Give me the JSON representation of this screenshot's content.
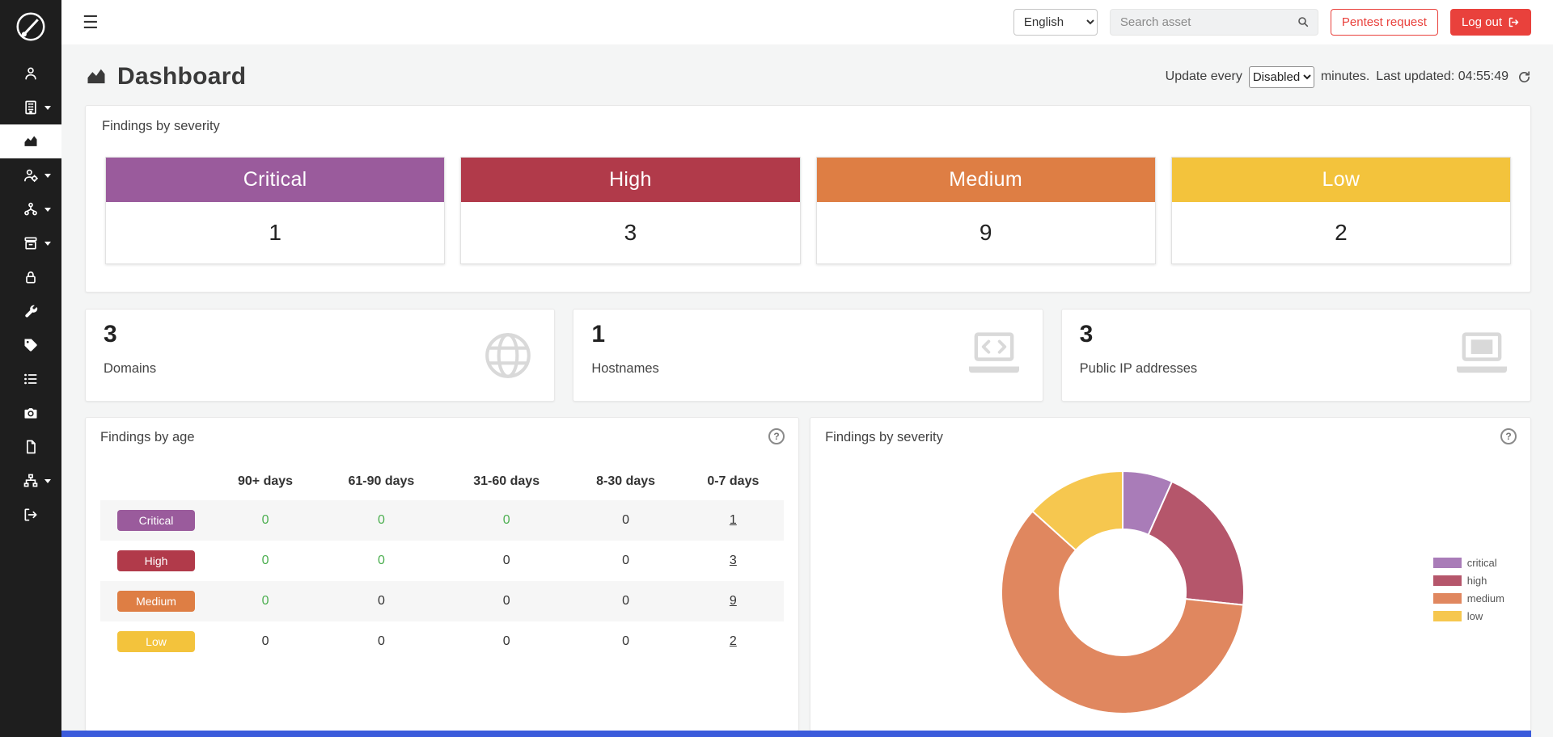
{
  "glyphs": {
    "hamburger": "☰",
    "help": "?"
  },
  "colors": {
    "accent_red": "#e9413c",
    "sidebar_bg": "#1e1e1e",
    "green_zero": "#4caf50",
    "footer_blue": "#3b5bdb"
  },
  "sidebar": {
    "active_index": 2,
    "items": [
      {
        "icon": "user-icon",
        "caret": false
      },
      {
        "icon": "building-icon",
        "caret": true
      },
      {
        "icon": "chart-icon",
        "caret": false
      },
      {
        "icon": "user-gear-icon",
        "caret": true
      },
      {
        "icon": "hierarchy-icon",
        "caret": true
      },
      {
        "icon": "archive-icon",
        "caret": true
      },
      {
        "icon": "lock-icon",
        "caret": false
      },
      {
        "icon": "tools-icon",
        "caret": false
      },
      {
        "icon": "tag-icon",
        "caret": false
      },
      {
        "icon": "list-icon",
        "caret": false
      },
      {
        "icon": "camera-icon",
        "caret": false
      },
      {
        "icon": "document-icon",
        "caret": false
      },
      {
        "icon": "sitemap-icon",
        "caret": true
      },
      {
        "icon": "logout-icon",
        "caret": false
      }
    ]
  },
  "topbar": {
    "language_selected": "English",
    "search_placeholder": "Search asset",
    "pentest_request_label": "Pentest request",
    "logout_label": "Log out"
  },
  "header": {
    "title": "Dashboard",
    "update_every_label": "Update every",
    "update_interval_selected": "Disabled",
    "minutes_label": "minutes.",
    "last_updated_label": "Last updated:",
    "last_updated_time": "04:55:49"
  },
  "severity_summary": {
    "title": "Findings by severity",
    "items": [
      {
        "label": "Critical",
        "value": "1",
        "color": "#9a5b9c"
      },
      {
        "label": "High",
        "value": "3",
        "color": "#b13a4a"
      },
      {
        "label": "Medium",
        "value": "9",
        "color": "#de7e44"
      },
      {
        "label": "Low",
        "value": "2",
        "color": "#f3c33c"
      }
    ]
  },
  "stats": [
    {
      "value": "3",
      "label": "Domains",
      "icon": "globe-icon"
    },
    {
      "value": "1",
      "label": "Hostnames",
      "icon": "laptop-code-icon"
    },
    {
      "value": "3",
      "label": "Public IP addresses",
      "icon": "laptop-icon"
    }
  ],
  "findings_by_age": {
    "title": "Findings by age",
    "columns": [
      "90+ days",
      "61-90 days",
      "31-60 days",
      "8-30 days",
      "0-7 days"
    ],
    "rows": [
      {
        "label": "Critical",
        "color": "#9a5b9c",
        "values": [
          "0",
          "0",
          "0",
          "0",
          "1"
        ],
        "green_cells": [
          true,
          true,
          true,
          false,
          false
        ]
      },
      {
        "label": "High",
        "color": "#b13a4a",
        "values": [
          "0",
          "0",
          "0",
          "0",
          "3"
        ],
        "green_cells": [
          true,
          true,
          false,
          false,
          false
        ]
      },
      {
        "label": "Medium",
        "color": "#de7e44",
        "values": [
          "0",
          "0",
          "0",
          "0",
          "9"
        ],
        "green_cells": [
          true,
          false,
          false,
          false,
          false
        ]
      },
      {
        "label": "Low",
        "color": "#f3c33c",
        "values": [
          "0",
          "0",
          "0",
          "0",
          "2"
        ],
        "green_cells": [
          false,
          false,
          false,
          false,
          false
        ]
      }
    ]
  },
  "chart_data": {
    "type": "pie",
    "donut": true,
    "title": "Findings by severity",
    "categories": [
      "critical",
      "high",
      "medium",
      "low"
    ],
    "values": [
      1,
      3,
      9,
      2
    ],
    "colors": [
      "#a97cb8",
      "#b5566b",
      "#e0875f",
      "#f6c74f"
    ],
    "legend_position": "right",
    "start_angle_deg": -90,
    "direction": "clockwise"
  }
}
